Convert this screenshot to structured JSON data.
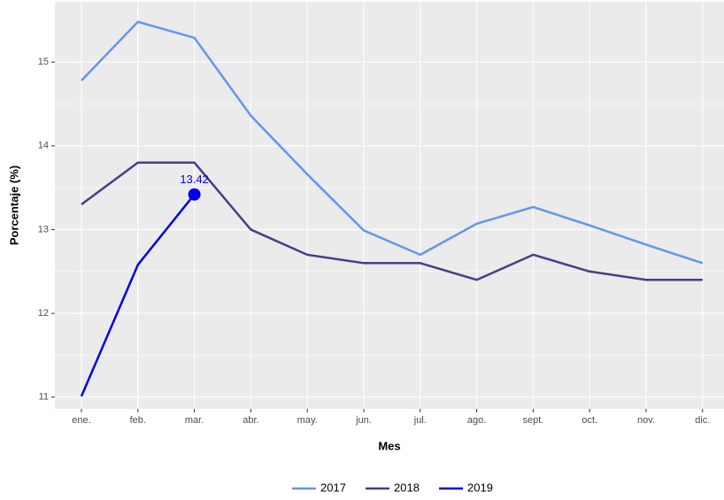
{
  "chart_data": {
    "type": "line",
    "x_label": "Mes",
    "y_label": "Porcentaje (%)",
    "categories": [
      "ene.",
      "feb.",
      "mar.",
      "abr.",
      "may.",
      "jun.",
      "jul.",
      "ago.",
      "sept.",
      "oct.",
      "nov.",
      "dic."
    ],
    "series": [
      {
        "name": "2017",
        "color": "#6495ED",
        "values": [
          14.78,
          15.48,
          15.29,
          14.36,
          13.66,
          12.99,
          12.7,
          13.07,
          13.27,
          13.05,
          12.82,
          12.6
        ]
      },
      {
        "name": "2018",
        "color": "#483D8B",
        "values": [
          13.3,
          13.8,
          13.8,
          13.0,
          12.7,
          12.6,
          12.6,
          12.4,
          12.7,
          12.5,
          12.4,
          12.4
        ]
      },
      {
        "name": "2019",
        "color": "#0000EE",
        "point": true,
        "values": [
          11.01,
          12.58,
          13.42,
          null,
          null,
          null,
          null,
          null,
          null,
          null,
          null,
          null
        ]
      }
    ],
    "ylim": [
      10.86,
      15.72
    ],
    "yticks": [
      11,
      12,
      13,
      14,
      15
    ],
    "grid": true,
    "legend": "bottom"
  }
}
